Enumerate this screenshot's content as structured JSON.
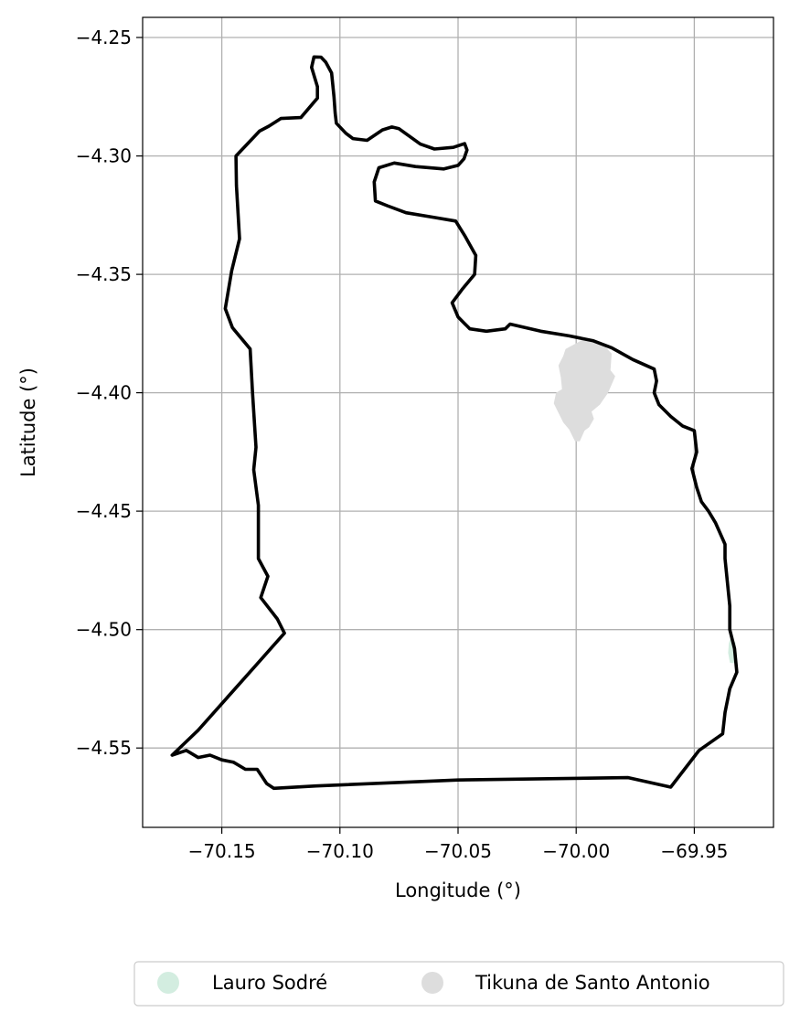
{
  "chart_data": {
    "type": "map",
    "xlabel": "Longitude (°)",
    "ylabel": "Latitude (°)",
    "xlim": [
      -70.1835,
      -69.9165
    ],
    "ylim": [
      -4.5835,
      -4.2415
    ],
    "xticks": [
      -70.15,
      -70.1,
      -70.05,
      -70.0,
      -69.95
    ],
    "xtick_labels": [
      "−70.15",
      "−70.10",
      "−70.05",
      "−70.00",
      "−69.95"
    ],
    "yticks": [
      -4.25,
      -4.3,
      -4.35,
      -4.4,
      -4.45,
      -4.5,
      -4.55
    ],
    "ytick_labels": [
      "−4.25",
      "−4.30",
      "−4.35",
      "−4.40",
      "−4.45",
      "−4.50",
      "−4.55"
    ],
    "grid": true,
    "legend_placement": "bottom-center",
    "legend": [
      {
        "label": "Lauro Sodré",
        "color": "#d3ede0"
      },
      {
        "label": "Tikuna de Santo Antonio",
        "color": "#dddddd"
      }
    ],
    "outline": {
      "color": "#000000",
      "points": [
        [
          -70.171,
          -4.553
        ],
        [
          -70.165,
          -4.551
        ],
        [
          -70.16,
          -4.554
        ],
        [
          -70.155,
          -4.553
        ],
        [
          -70.15,
          -4.555
        ],
        [
          -70.145,
          -4.556
        ],
        [
          -70.14,
          -4.559
        ],
        [
          -70.135,
          -4.559
        ],
        [
          -70.133,
          -4.562
        ],
        [
          -70.131,
          -4.565
        ],
        [
          -70.128,
          -4.567
        ],
        [
          -70.11,
          -4.566
        ],
        [
          -70.05,
          -4.5635
        ],
        [
          -69.978,
          -4.5625
        ],
        [
          -69.96,
          -4.5665
        ],
        [
          -69.948,
          -4.551
        ],
        [
          -69.938,
          -4.544
        ],
        [
          -69.937,
          -4.535
        ],
        [
          -69.935,
          -4.525
        ],
        [
          -69.932,
          -4.518
        ],
        [
          -69.933,
          -4.508
        ],
        [
          -69.935,
          -4.5
        ],
        [
          -69.935,
          -4.49
        ],
        [
          -69.936,
          -4.48
        ],
        [
          -69.937,
          -4.47
        ],
        [
          -69.937,
          -4.464
        ],
        [
          -69.941,
          -4.455
        ],
        [
          -69.944,
          -4.45
        ],
        [
          -69.947,
          -4.446
        ],
        [
          -69.949,
          -4.44
        ],
        [
          -69.951,
          -4.432
        ],
        [
          -69.949,
          -4.425
        ],
        [
          -69.95,
          -4.416
        ],
        [
          -69.955,
          -4.414
        ],
        [
          -69.96,
          -4.41
        ],
        [
          -69.965,
          -4.405
        ],
        [
          -69.967,
          -4.4
        ],
        [
          -69.966,
          -4.395
        ],
        [
          -69.967,
          -4.39
        ],
        [
          -69.976,
          -4.386
        ],
        [
          -69.985,
          -4.381
        ],
        [
          -69.993,
          -4.378
        ],
        [
          -70.003,
          -4.376
        ],
        [
          -70.015,
          -4.374
        ],
        [
          -70.028,
          -4.371
        ],
        [
          -70.03,
          -4.373
        ],
        [
          -70.038,
          -4.374
        ],
        [
          -70.045,
          -4.373
        ],
        [
          -70.05,
          -4.368
        ],
        [
          -70.0525,
          -4.362
        ],
        [
          -70.048,
          -4.356
        ],
        [
          -70.043,
          -4.35
        ],
        [
          -70.0425,
          -4.342
        ],
        [
          -70.047,
          -4.334
        ],
        [
          -70.051,
          -4.3275
        ],
        [
          -70.06,
          -4.326
        ],
        [
          -70.072,
          -4.324
        ],
        [
          -70.08,
          -4.321
        ],
        [
          -70.085,
          -4.319
        ],
        [
          -70.0855,
          -4.311
        ],
        [
          -70.0835,
          -4.305
        ],
        [
          -70.077,
          -4.303
        ],
        [
          -70.068,
          -4.3045
        ],
        [
          -70.056,
          -4.3055
        ],
        [
          -70.05,
          -4.304
        ],
        [
          -70.0475,
          -4.3012
        ],
        [
          -70.0462,
          -4.2975
        ],
        [
          -70.0472,
          -4.2948
        ],
        [
          -70.052,
          -4.2964
        ],
        [
          -70.06,
          -4.2971
        ],
        [
          -70.066,
          -4.295
        ],
        [
          -70.075,
          -4.2885
        ],
        [
          -70.078,
          -4.2878
        ],
        [
          -70.082,
          -4.289
        ],
        [
          -70.0885,
          -4.2934
        ],
        [
          -70.0945,
          -4.2927
        ],
        [
          -70.0975,
          -4.2904
        ],
        [
          -70.1015,
          -4.2862
        ],
        [
          -70.102,
          -4.282
        ],
        [
          -70.1025,
          -4.275
        ],
        [
          -70.1035,
          -4.265
        ],
        [
          -70.106,
          -4.2604
        ],
        [
          -70.108,
          -4.2583
        ],
        [
          -70.111,
          -4.2582
        ],
        [
          -70.112,
          -4.2626
        ],
        [
          -70.1095,
          -4.2708
        ],
        [
          -70.1095,
          -4.2756
        ],
        [
          -70.1165,
          -4.2838
        ],
        [
          -70.125,
          -4.2842
        ],
        [
          -70.13,
          -4.2874
        ],
        [
          -70.134,
          -4.2895
        ],
        [
          -70.144,
          -4.3
        ],
        [
          -70.1438,
          -4.3125
        ],
        [
          -70.1425,
          -4.335
        ],
        [
          -70.1458,
          -4.3485
        ],
        [
          -70.1485,
          -4.3645
        ],
        [
          -70.1455,
          -4.3725
        ],
        [
          -70.138,
          -4.3815
        ],
        [
          -70.137,
          -4.4
        ],
        [
          -70.1355,
          -4.423
        ],
        [
          -70.1365,
          -4.4325
        ],
        [
          -70.1345,
          -4.4475
        ],
        [
          -70.1345,
          -4.47
        ],
        [
          -70.1305,
          -4.4775
        ],
        [
          -70.1335,
          -4.4865
        ],
        [
          -70.1265,
          -4.4955
        ],
        [
          -70.1235,
          -4.5015
        ],
        [
          -70.135,
          -4.5145
        ],
        [
          -70.1475,
          -4.5285
        ],
        [
          -70.16,
          -4.5425
        ],
        [
          -70.171,
          -4.553
        ]
      ]
    },
    "regions": [
      {
        "name": "Tikuna de Santo Antonio",
        "color": "#dddddd",
        "points": [
          [
            -70.0045,
            -4.3815
          ],
          [
            -69.997,
            -4.3775
          ],
          [
            -69.9895,
            -4.3785
          ],
          [
            -69.985,
            -4.3835
          ],
          [
            -69.9855,
            -4.3905
          ],
          [
            -69.9835,
            -4.393
          ],
          [
            -69.9865,
            -4.4
          ],
          [
            -69.99,
            -4.405
          ],
          [
            -69.9935,
            -4.408
          ],
          [
            -69.9925,
            -4.411
          ],
          [
            -69.9945,
            -4.4145
          ],
          [
            -69.9965,
            -4.416
          ],
          [
            -69.9985,
            -4.4205
          ],
          [
            -70.0005,
            -4.4205
          ],
          [
            -70.003,
            -4.4155
          ],
          [
            -70.0055,
            -4.4125
          ],
          [
            -70.0095,
            -4.4045
          ],
          [
            -70.0085,
            -4.4
          ],
          [
            -70.006,
            -4.3985
          ],
          [
            -70.0065,
            -4.3935
          ],
          [
            -70.0075,
            -4.3885
          ],
          [
            -70.0055,
            -4.3845
          ],
          [
            -70.0045,
            -4.3815
          ]
        ]
      },
      {
        "name": "Lauro Sodré",
        "color": "#d3ede0",
        "points": [
          [
            -69.9348,
            -4.5035
          ],
          [
            -69.9326,
            -4.5055
          ],
          [
            -69.932,
            -4.5105
          ],
          [
            -69.9328,
            -4.5142
          ],
          [
            -69.9349,
            -4.514
          ],
          [
            -69.9357,
            -4.5098
          ],
          [
            -69.9354,
            -4.5058
          ],
          [
            -69.9348,
            -4.5035
          ]
        ]
      }
    ]
  }
}
